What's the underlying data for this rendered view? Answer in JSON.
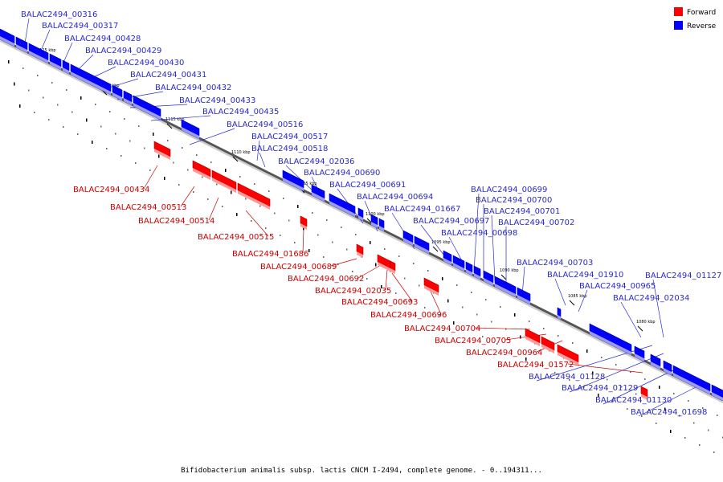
{
  "caption": "Bifidobacterium animalis subsp. lactis CNCM I-2494, complete genome. - 0..194311...",
  "legend": [
    {
      "label": "Forward",
      "color": "#ff0000"
    },
    {
      "label": "Reverse",
      "color": "#0000ff"
    }
  ],
  "colors": {
    "forward": "#ff0000",
    "reverse": "#0000ff",
    "forward_label": "#cc0000",
    "reverse_label": "#2a2acc"
  },
  "ticks": [
    "1125 kbp",
    "1120 kbp",
    "1115 kbp",
    "1110 kbp",
    "1105 kbp",
    "1100 kbp",
    "1095 kbp",
    "1090 kbp",
    "1085 kbp",
    "1080 kbp"
  ],
  "reverse_labels": [
    "BALAC2494_00316",
    "BALAC2494_00317",
    "BALAC2494_00428",
    "BALAC2494_00429",
    "BALAC2494_00430",
    "BALAC2494_00431",
    "BALAC2494_00432",
    "BALAC2494_00433",
    "BALAC2494_00435",
    "BALAC2494_00516",
    "BALAC2494_00517",
    "BALAC2494_00518",
    "BALAC2494_02036",
    "BALAC2494_00690",
    "BALAC2494_00691",
    "BALAC2494_00694",
    "BALAC2494_01667",
    "BALAC2494_00697",
    "BALAC2494_00698",
    "BALAC2494_00699",
    "BALAC2494_00700",
    "BALAC2494_00701",
    "BALAC2494_00702",
    "BALAC2494_00703",
    "BALAC2494_01910",
    "BALAC2494_00965",
    "BALAC2494_01127",
    "BALAC2494_02034",
    "BALAC2494_01128",
    "BALAC2494_01129",
    "BALAC2494_01130",
    "BALAC2494_01698"
  ],
  "forward_labels": [
    "BALAC2494_00434",
    "BALAC2494_00513",
    "BALAC2494_00514",
    "BALAC2494_00515",
    "BALAC2494_01686",
    "BALAC2494_00689",
    "BALAC2494_00692",
    "BALAC2494_02035",
    "BALAC2494_00693",
    "BALAC2494_00696",
    "BALAC2494_00704",
    "BALAC2494_00705",
    "BALAC2494_00964",
    "BALAC2494_01572"
  ]
}
